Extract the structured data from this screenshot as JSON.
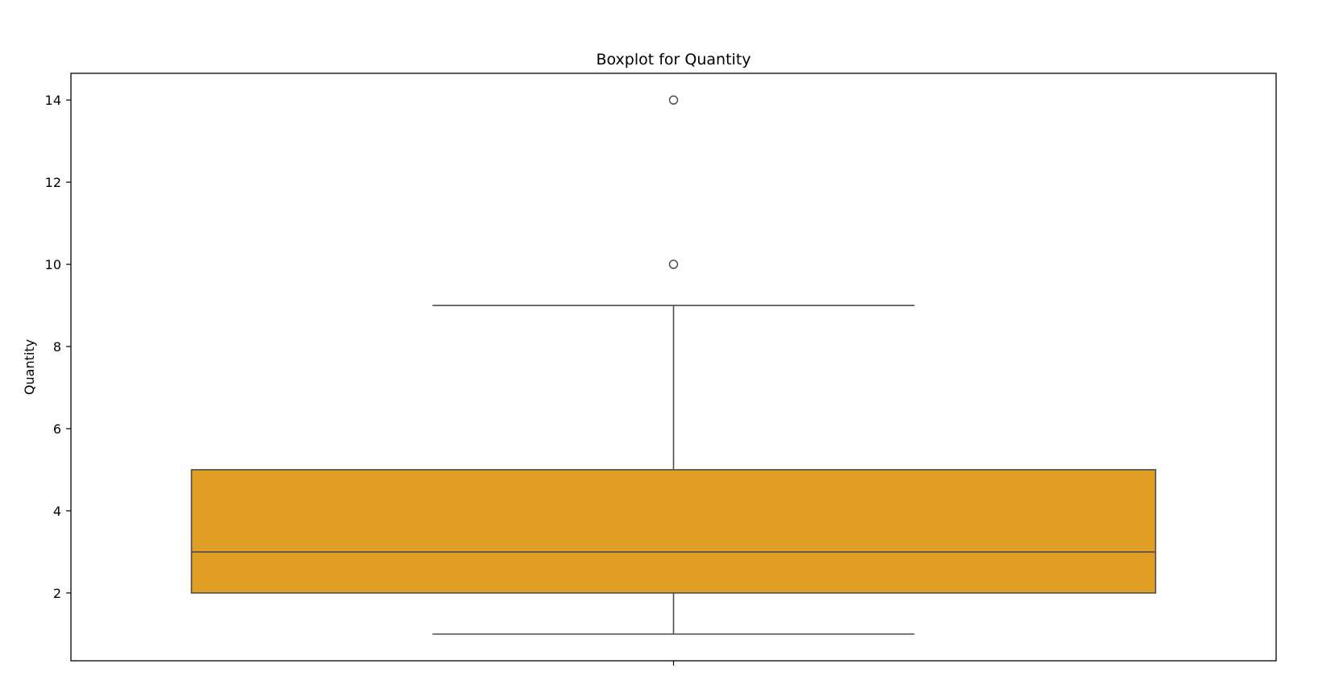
{
  "chart_data": {
    "type": "box",
    "title": "Boxplot for Quantity",
    "xlabel": "",
    "ylabel": "Quantity",
    "ylim": [
      0.35,
      14.65
    ],
    "yticks": [
      2,
      4,
      6,
      8,
      10,
      12,
      14
    ],
    "grid": false,
    "legend": "none",
    "series": [
      {
        "whisker_low": 1,
        "q1": 2,
        "median": 3,
        "q3": 5,
        "whisker_high": 9,
        "outliers": [
          10,
          14
        ]
      }
    ],
    "box_color": "#E09E24",
    "line_color": "#4d4d4d"
  }
}
